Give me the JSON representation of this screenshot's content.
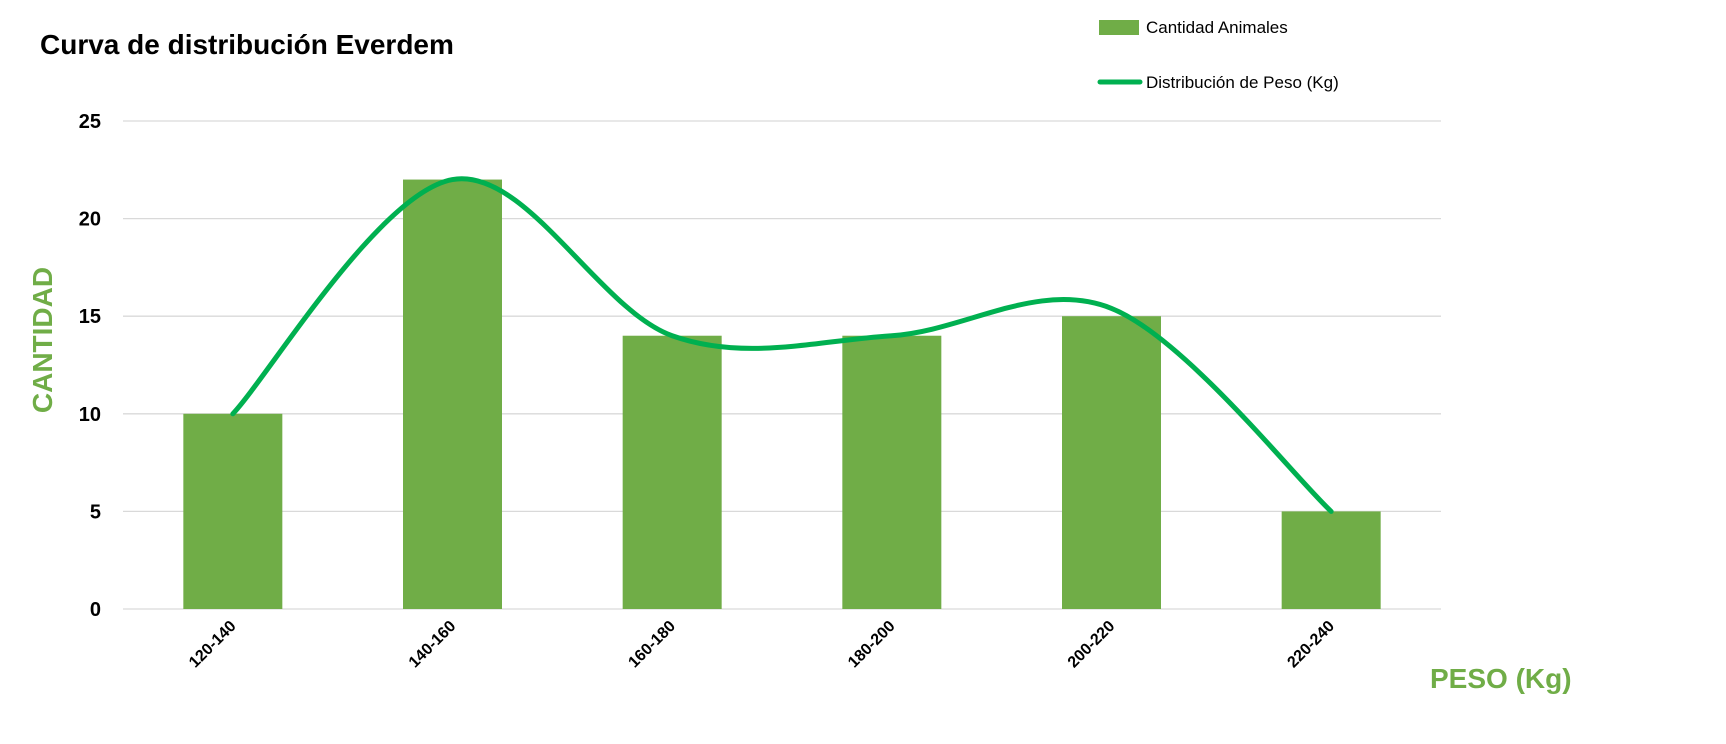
{
  "chart_data": {
    "type": "bar",
    "title": "Curva de distribución Everdem",
    "categories": [
      "120-140",
      "140-160",
      "160-180",
      "180-200",
      "200-220",
      "220-240"
    ],
    "series": [
      {
        "name": "Cantidad Animales",
        "type": "bar",
        "values": [
          10,
          22,
          14,
          14,
          15,
          5
        ],
        "color": "#70AD47"
      },
      {
        "name": "Distribución de Peso (Kg)",
        "type": "line",
        "smooth": true,
        "values": [
          10,
          22,
          14,
          14,
          15.4,
          5
        ],
        "color": "#00B050"
      }
    ],
    "xlabel": "PESO (Kg)",
    "ylabel": "CANTIDAD",
    "ylim": [
      0,
      25
    ],
    "yticks": [
      "0",
      "5",
      "10",
      "15",
      "20",
      "25"
    ],
    "grid": true,
    "legend_position": "top-right",
    "axis_label_color": "#70AD47",
    "gridline_color": "#D9D9D9"
  }
}
